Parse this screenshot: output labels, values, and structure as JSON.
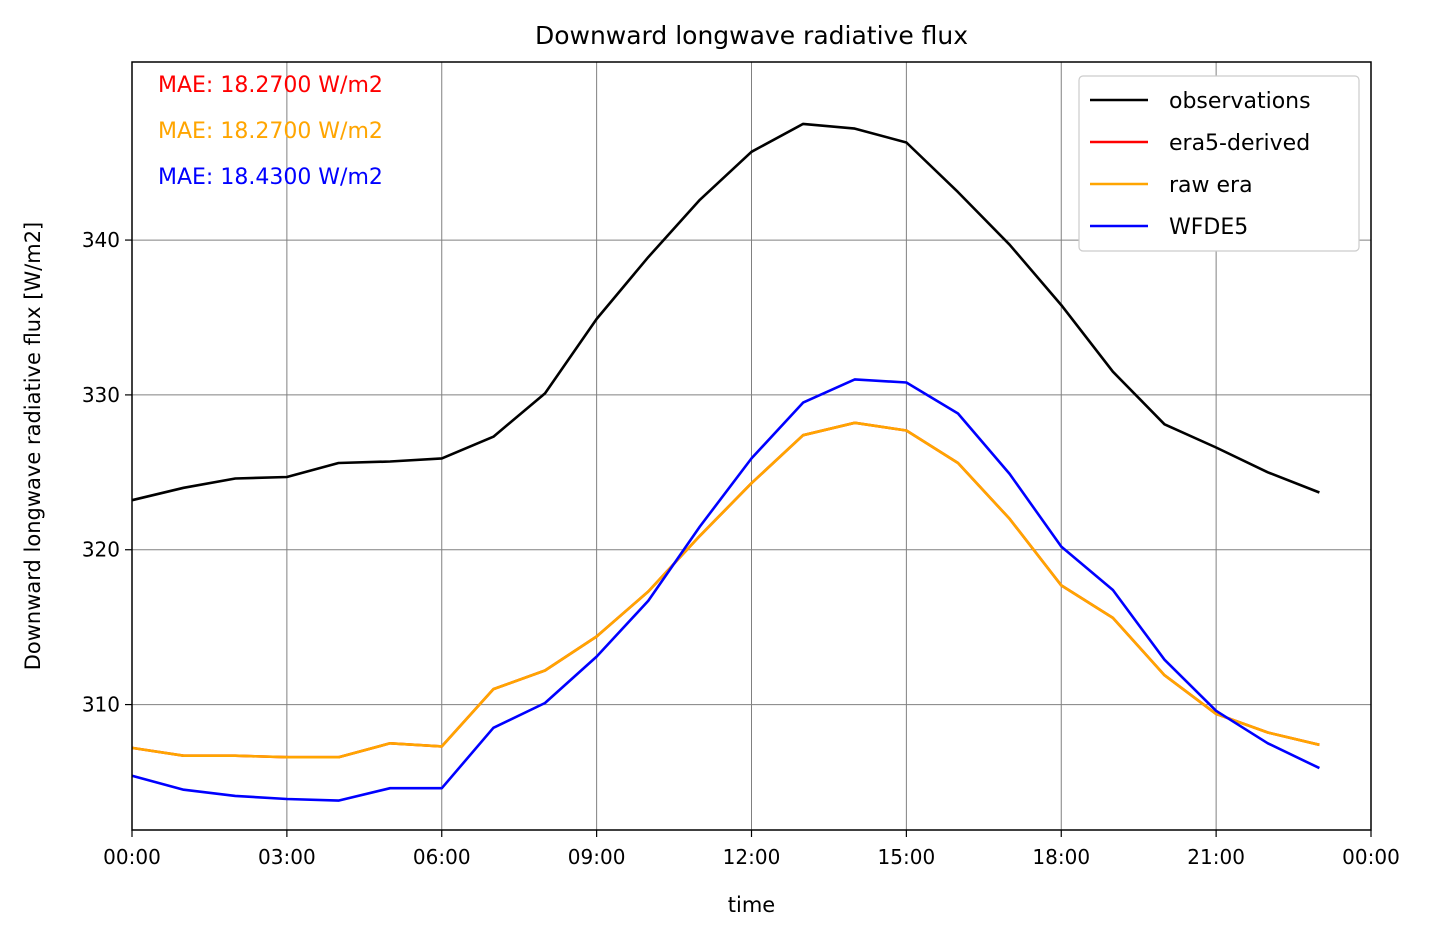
{
  "chart_data": {
    "type": "line",
    "title": "Downward longwave radiative flux",
    "xlabel": "time",
    "ylabel": "Downward longwave radiative flux [W/m2]",
    "x_hours": [
      0,
      1,
      2,
      3,
      4,
      5,
      6,
      7,
      8,
      9,
      10,
      11,
      12,
      13,
      14,
      15,
      16,
      17,
      18,
      19,
      20,
      21,
      22,
      23
    ],
    "xlim": [
      0,
      24
    ],
    "ylim": [
      301.9,
      351.5
    ],
    "xticks": [
      0,
      3,
      6,
      9,
      12,
      15,
      18,
      21,
      24
    ],
    "xtick_labels": [
      "00:00",
      "03:00",
      "06:00",
      "09:00",
      "12:00",
      "15:00",
      "18:00",
      "21:00",
      "00:00"
    ],
    "yticks": [
      310,
      320,
      330,
      340
    ],
    "ytick_labels": [
      "310",
      "320",
      "330",
      "340"
    ],
    "grid": true,
    "legend_position": "top-right",
    "series": [
      {
        "name": "observations",
        "color": "#000000",
        "values": [
          323.2,
          324.0,
          324.6,
          324.7,
          325.6,
          325.7,
          325.9,
          327.3,
          330.1,
          334.9,
          338.9,
          342.6,
          345.7,
          347.5,
          347.2,
          346.3,
          343.1,
          339.7,
          335.8,
          331.5,
          328.1,
          326.6,
          325.0,
          323.7
        ]
      },
      {
        "name": "era5-derived",
        "color": "#ff0000",
        "values": [
          307.2,
          306.7,
          306.7,
          306.6,
          306.6,
          307.5,
          307.3,
          311.0,
          312.2,
          314.4,
          317.3,
          320.9,
          324.3,
          327.4,
          328.2,
          327.7,
          325.6,
          322.0,
          317.7,
          315.6,
          311.9,
          309.4,
          308.2,
          307.4
        ]
      },
      {
        "name": "raw era",
        "color": "#ffa500",
        "values": [
          307.2,
          306.7,
          306.7,
          306.6,
          306.6,
          307.5,
          307.3,
          311.0,
          312.2,
          314.4,
          317.3,
          320.9,
          324.3,
          327.4,
          328.2,
          327.7,
          325.6,
          322.0,
          317.7,
          315.6,
          311.9,
          309.4,
          308.2,
          307.4
        ]
      },
      {
        "name": "WFDE5",
        "color": "#0000ff",
        "values": [
          305.4,
          304.5,
          304.1,
          303.9,
          303.8,
          304.6,
          304.6,
          308.5,
          310.1,
          313.1,
          316.7,
          321.5,
          325.9,
          329.5,
          331.0,
          330.8,
          328.8,
          324.9,
          320.2,
          317.4,
          312.9,
          309.6,
          307.5,
          305.9
        ]
      }
    ],
    "annotations": [
      {
        "text": "MAE: 18.2700 W/m2",
        "color": "#ff0000"
      },
      {
        "text": "MAE: 18.2700 W/m2",
        "color": "#ffa500"
      },
      {
        "text": "MAE: 18.4300 W/m2",
        "color": "#0000ff"
      }
    ]
  }
}
